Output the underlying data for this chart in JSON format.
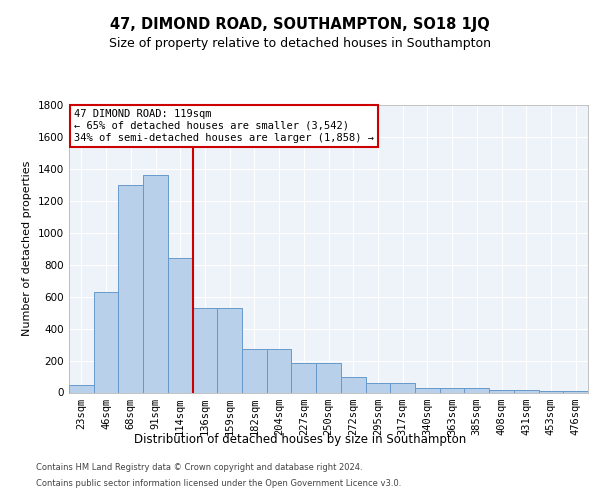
{
  "title": "47, DIMOND ROAD, SOUTHAMPTON, SO18 1JQ",
  "subtitle": "Size of property relative to detached houses in Southampton",
  "xlabel": "Distribution of detached houses by size in Southampton",
  "ylabel": "Number of detached properties",
  "categories": [
    "23sqm",
    "46sqm",
    "68sqm",
    "91sqm",
    "114sqm",
    "136sqm",
    "159sqm",
    "182sqm",
    "204sqm",
    "227sqm",
    "250sqm",
    "272sqm",
    "295sqm",
    "317sqm",
    "340sqm",
    "363sqm",
    "385sqm",
    "408sqm",
    "431sqm",
    "453sqm",
    "476sqm"
  ],
  "values": [
    50,
    630,
    1300,
    1360,
    840,
    530,
    530,
    270,
    270,
    185,
    185,
    100,
    60,
    60,
    30,
    30,
    30,
    15,
    15,
    10,
    10
  ],
  "bar_color": "#b8d0ea",
  "bar_edge_color": "#6699cc",
  "vline_color": "#cc0000",
  "annotation_text": "47 DIMOND ROAD: 119sqm\n← 65% of detached houses are smaller (3,542)\n34% of semi-detached houses are larger (1,858) →",
  "annotation_box_color": "white",
  "annotation_box_edge_color": "#cc0000",
  "ylim": [
    0,
    1800
  ],
  "yticks": [
    0,
    200,
    400,
    600,
    800,
    1000,
    1200,
    1400,
    1600,
    1800
  ],
  "footer1": "Contains HM Land Registry data © Crown copyright and database right 2024.",
  "footer2": "Contains public sector information licensed under the Open Government Licence v3.0.",
  "title_fontsize": 10.5,
  "subtitle_fontsize": 9,
  "ylabel_fontsize": 8,
  "xlabel_fontsize": 8.5,
  "tick_fontsize": 7.5,
  "footer_fontsize": 6,
  "annotation_fontsize": 7.5,
  "bg_color": "#eef2f9",
  "grid_color": "white",
  "fig_bg": "white"
}
